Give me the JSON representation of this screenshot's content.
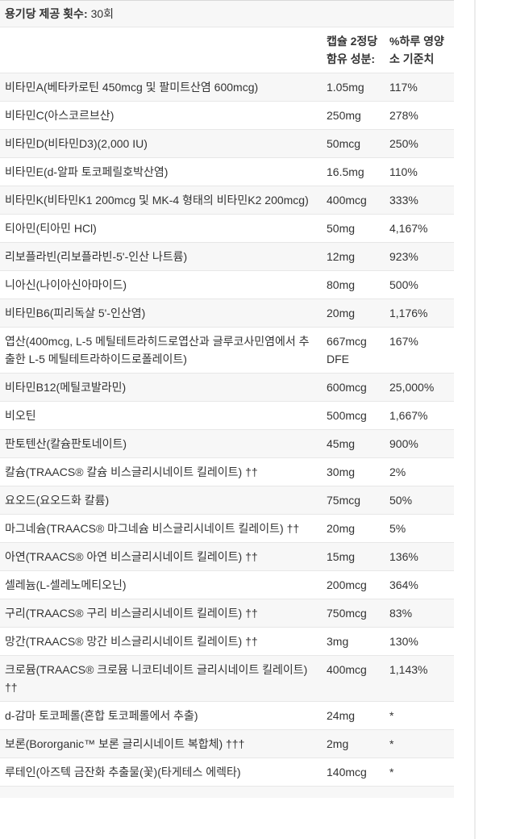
{
  "servings": {
    "label": "용기당 제공 횟수:",
    "value": "30회"
  },
  "table": {
    "header": {
      "ingredient": "",
      "amount": "캡슐 2정당 함유 성분:",
      "daily_value": "%하루 영양소 기준치"
    },
    "rows": [
      {
        "name": "비타민A(베타카로틴 450mcg 및 팔미트산염 600mcg)",
        "amount": "1.05mg",
        "dv": "117%"
      },
      {
        "name": "비타민C(아스코르브산)",
        "amount": "250mg",
        "dv": "278%"
      },
      {
        "name": "비타민D(비타민D3)(2,000 IU)",
        "amount": "50mcg",
        "dv": "250%"
      },
      {
        "name": "비타민E(d-알파 토코페릴호박산염)",
        "amount": "16.5mg",
        "dv": "110%"
      },
      {
        "name": "비타민K(비타민K1 200mcg 및 MK-4 형태의 비타민K2 200mcg)",
        "amount": "400mcg",
        "dv": "333%"
      },
      {
        "name": "티아민(티아민 HCl)",
        "amount": "50mg",
        "dv": "4,167%"
      },
      {
        "name": "리보플라빈(리보플라빈-5'-인산 나트륨)",
        "amount": "12mg",
        "dv": "923%"
      },
      {
        "name": "니아신(나이아신아마이드)",
        "amount": "80mg",
        "dv": "500%"
      },
      {
        "name": "비타민B6(피리독살 5'-인산염)",
        "amount": "20mg",
        "dv": "1,176%"
      },
      {
        "name": "엽산(400mcg, L-5 메틸테트라히드로엽산과 글루코사민염에서 추출한 L-5 메틸테트라하이드로폴레이트)",
        "amount": "667mcg DFE",
        "dv": "167%"
      },
      {
        "name": "비타민B12(메틸코발라민)",
        "amount": "600mcg",
        "dv": "25,000%"
      },
      {
        "name": "비오틴",
        "amount": "500mcg",
        "dv": "1,667%"
      },
      {
        "name": "판토텐산(칼슘판토네이트)",
        "amount": "45mg",
        "dv": "900%"
      },
      {
        "name": "칼슘(TRAACS® 칼슘 비스글리시네이트 킬레이트) ††",
        "amount": "30mg",
        "dv": "2%"
      },
      {
        "name": "요오드(요오드화 칼륨)",
        "amount": "75mcg",
        "dv": "50%"
      },
      {
        "name": "마그네슘(TRAACS® 마그네슘 비스글리시네이트 킬레이트) ††",
        "amount": "20mg",
        "dv": "5%"
      },
      {
        "name": "아연(TRAACS® 아연 비스글리시네이트 킬레이트) ††",
        "amount": "15mg",
        "dv": "136%"
      },
      {
        "name": "셀레늄(L-셀레노메티오닌)",
        "amount": "200mcg",
        "dv": "364%"
      },
      {
        "name": "구리(TRAACS® 구리 비스글리시네이트 킬레이트) ††",
        "amount": "750mcg",
        "dv": "83%"
      },
      {
        "name": "망간(TRAACS® 망간 비스글리시네이트 킬레이트) ††",
        "amount": "3mg",
        "dv": "130%"
      },
      {
        "name": "크로뮴(TRAACS® 크로뮴 니코티네이트 글리시네이트 킬레이트) ††",
        "amount": "400mcg",
        "dv": "1,143%"
      },
      {
        "name": "d-감마 토코페롤(혼합 토코페롤에서 추출)",
        "amount": "24mg",
        "dv": "*"
      },
      {
        "name": "보론(Bororganic™ 보론 글리시네이트 복합체) †††",
        "amount": "2mg",
        "dv": "*"
      },
      {
        "name": "루테인(아즈텍 금잔화 추출물(꽃)(타게테스 에렉타)",
        "amount": "140mcg",
        "dv": "*"
      }
    ]
  },
  "colors": {
    "stripe": "#f7f7f7",
    "row_border": "#e7e7e7",
    "top_border": "#d9d9d9",
    "text": "#333333",
    "layout_divider": "#ececec"
  }
}
